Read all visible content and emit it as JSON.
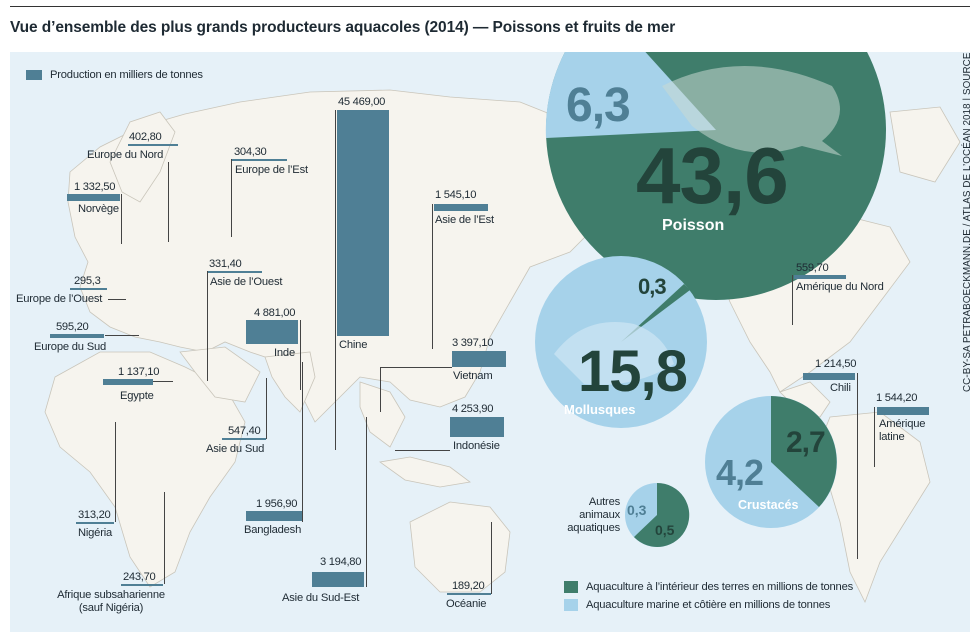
{
  "title": "Vue d’ensemble des plus grands producteurs aquacoles (2014) — Poissons et fruits de mer",
  "credit": "CC-BY-SA PETRABOECKMANN.DE / ATLAS DE L’OCÉAN 2018 | SOURCE: FAO",
  "colors": {
    "bar": "#4f7f95",
    "inland": "#3f7d6b",
    "marine": "#a6d2ea",
    "ocean": "#e6f1f8",
    "land": "#f6f4ee"
  },
  "legend": {
    "bar_label": "Production en milliers de tonnes",
    "inland_label": "Aquaculture à l’intérieur des terres en millions de tonnes",
    "marine_label": "Aquaculture marine et côtière en millions de tonnes"
  },
  "regions": [
    {
      "name": "Chine",
      "value": "45 469,00"
    },
    {
      "name": "Europe du Nord",
      "value": "402,80"
    },
    {
      "name": "Norvège",
      "value": "1 332,50"
    },
    {
      "name": "Europe de l’Ouest",
      "value": "295,3"
    },
    {
      "name": "Europe du Sud",
      "value": "595,20"
    },
    {
      "name": "Europe de l’Est",
      "value": "304,30"
    },
    {
      "name": "Asie de l’Ouest",
      "value": "331,40"
    },
    {
      "name": "Inde",
      "value": "4 881,00"
    },
    {
      "name": "Egypte",
      "value": "1 137,10"
    },
    {
      "name": "Asie du Sud",
      "value": "547,40"
    },
    {
      "name": "Nigéria",
      "value": "313,20"
    },
    {
      "name": "Afrique subsaharienne\n(sauf Nigéria)",
      "value": "243,70"
    },
    {
      "name": "Bangladesh",
      "value": "1 956,90"
    },
    {
      "name": "Asie du Sud-Est",
      "value": "3 194,80"
    },
    {
      "name": "Asie de l’Est",
      "value": "1 545,10"
    },
    {
      "name": "Vietnam",
      "value": "3 397,10"
    },
    {
      "name": "Indonésie",
      "value": "4 253,90"
    },
    {
      "name": "Océanie",
      "value": "189,20"
    },
    {
      "name": "Amérique du Nord",
      "value": "559,70"
    },
    {
      "name": "Chili",
      "value": "1 214,50"
    },
    {
      "name": "Amérique\nlatine",
      "value": "1 544,20"
    }
  ],
  "groups": [
    {
      "name": "Poisson",
      "inland": "43,6",
      "marine": "6,3"
    },
    {
      "name": "Mollusques",
      "inland": "0,3",
      "marine": "15,8"
    },
    {
      "name": "Crustacés",
      "inland": "2,7",
      "marine": "4,2"
    },
    {
      "name": "Autres\nanimaux\naquatiques",
      "inland": "0,5",
      "marine": "0,3"
    }
  ],
  "chart_data": [
    {
      "type": "bar",
      "title": "Vue d’ensemble des plus grands producteurs aquacoles (2014) — Poissons et fruits de mer",
      "series": [
        {
          "name": "Production en milliers de tonnes",
          "values": [
            45469.0,
            402.8,
            1332.5,
            295.3,
            595.2,
            304.3,
            331.4,
            4881.0,
            1137.1,
            547.4,
            313.2,
            243.7,
            1956.9,
            3194.8,
            1545.1,
            3397.1,
            4253.9,
            189.2,
            559.7,
            1214.5,
            1544.2
          ]
        }
      ],
      "categories": [
        "Chine",
        "Europe du Nord",
        "Norvège",
        "Europe de l’Ouest",
        "Europe du Sud",
        "Europe de l’Est",
        "Asie de l’Ouest",
        "Inde",
        "Egypte",
        "Asie du Sud",
        "Nigéria",
        "Afrique subsaharienne (sauf Nigéria)",
        "Bangladesh",
        "Asie du Sud-Est",
        "Asie de l’Est",
        "Vietnam",
        "Indonésie",
        "Océanie",
        "Amérique du Nord",
        "Chili",
        "Amérique latine"
      ]
    },
    {
      "type": "pie",
      "categories": [
        "Poisson",
        "Mollusques",
        "Crustacés",
        "Autres animaux aquatiques"
      ],
      "series": [
        {
          "name": "Aquaculture à l’intérieur des terres en millions de tonnes",
          "values": [
            43.6,
            0.3,
            2.7,
            0.5
          ]
        },
        {
          "name": "Aquaculture marine et côtière en millions de tonnes",
          "values": [
            6.3,
            15.8,
            4.2,
            0.3
          ]
        }
      ]
    }
  ]
}
